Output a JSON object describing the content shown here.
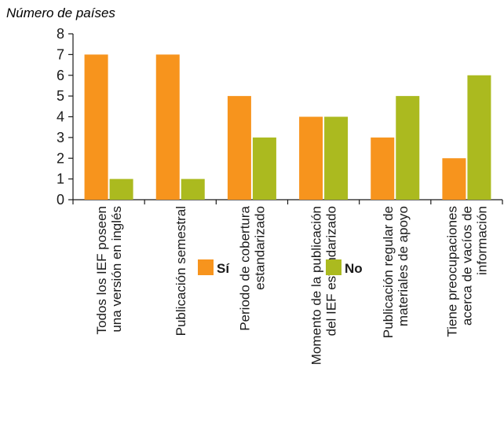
{
  "chart_data": {
    "type": "bar",
    "title": "",
    "ylabel": "Número de países",
    "xlabel": "",
    "ylim": [
      0,
      8
    ],
    "yticks": [
      0,
      1,
      2,
      3,
      4,
      5,
      6,
      7,
      8
    ],
    "grid": false,
    "legend_position": "bottom",
    "categories": [
      [
        "Todos los IEF poseen",
        "una versión en inglés"
      ],
      [
        "Publicación semestral"
      ],
      [
        "Periodo de cobertura",
        "estandarizado"
      ],
      [
        "Momento de la publicación",
        "del IEF estandarizado"
      ],
      [
        "Publicación regular de",
        "materiales de apoyo"
      ],
      [
        "Tiene preocupaciones",
        "acerca de vacíos de",
        "información"
      ]
    ],
    "series": [
      {
        "name": "Sí",
        "color": "#f7941d",
        "values": [
          7,
          7,
          5,
          4,
          3,
          2
        ]
      },
      {
        "name": "No",
        "color": "#abba1f",
        "values": [
          1,
          1,
          3,
          4,
          5,
          6
        ]
      }
    ]
  }
}
